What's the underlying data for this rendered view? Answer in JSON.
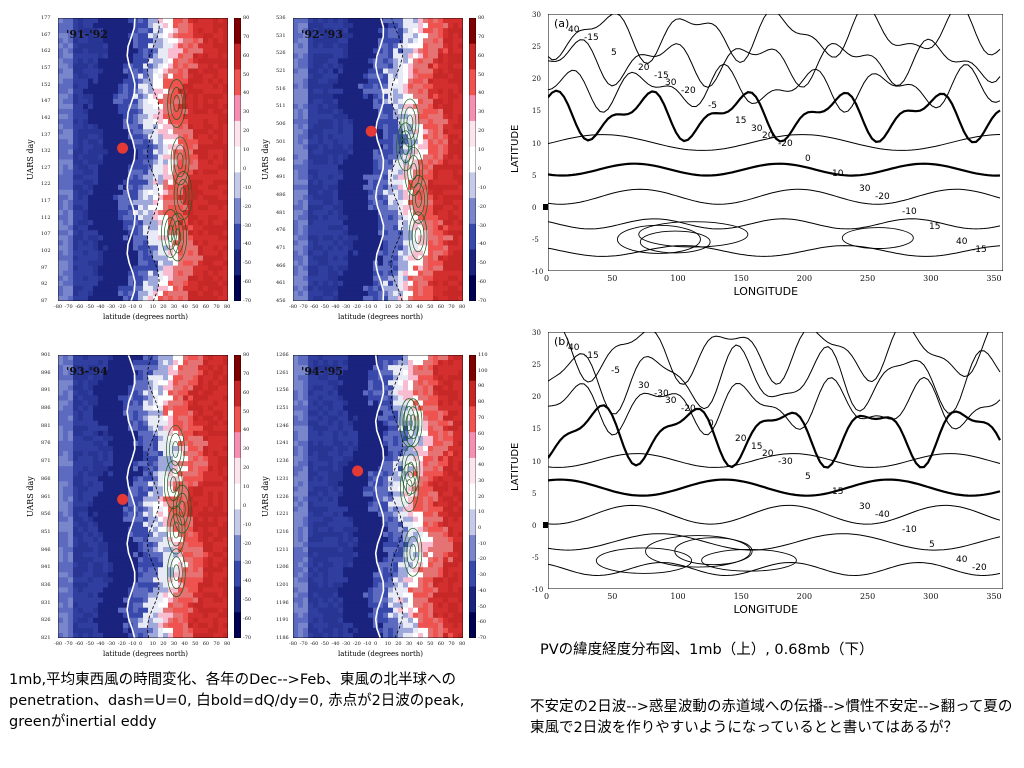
{
  "left_panels": [
    {
      "year_label": "'91-'92",
      "yticks": [
        "177",
        "167",
        "162",
        "157",
        "152",
        "147",
        "142",
        "137",
        "132",
        "127",
        "122",
        "117",
        "112",
        "107",
        "102",
        "97",
        "92",
        "87"
      ]
    },
    {
      "year_label": "'92-'93",
      "yticks": [
        "536",
        "531",
        "526",
        "521",
        "516",
        "511",
        "506",
        "501",
        "496",
        "491",
        "486",
        "481",
        "476",
        "471",
        "466",
        "461",
        "456"
      ]
    },
    {
      "year_label": "'93-'94",
      "yticks": [
        "901",
        "896",
        "891",
        "886",
        "881",
        "876",
        "871",
        "866",
        "861",
        "856",
        "851",
        "846",
        "841",
        "836",
        "831",
        "826",
        "821"
      ]
    },
    {
      "year_label": "'94-'95",
      "yticks": [
        "1266",
        "1261",
        "1256",
        "1251",
        "1246",
        "1241",
        "1236",
        "1231",
        "1226",
        "1221",
        "1216",
        "1211",
        "1206",
        "1201",
        "1196",
        "1191",
        "1186"
      ]
    }
  ],
  "heat_axis": {
    "ylabel": "UARS day",
    "xlabel": "latitude (degrees north)",
    "xticks": [
      "-80",
      "-70",
      "-60",
      "-50",
      "-40",
      "-30",
      "-20",
      "-10",
      "0",
      "10",
      "20",
      "30",
      "40",
      "50",
      "60",
      "70",
      "80"
    ],
    "colorbar_ticks": [
      "80",
      "70",
      "60",
      "50",
      "40",
      "30",
      "20",
      "10",
      "0",
      "-10",
      "-20",
      "-30",
      "-40",
      "-50",
      "-60",
      "-70"
    ],
    "colorbar_ticks_b": [
      "110",
      "100",
      "90",
      "80",
      "70",
      "60",
      "50",
      "40",
      "30",
      "20",
      "10",
      "0",
      "-10",
      "-20",
      "-30",
      "-40",
      "-50",
      "-60",
      "-70"
    ]
  },
  "contour_panels": [
    {
      "tag": "(a)",
      "xlabel": "LONGITUDE",
      "ylabel": "LATITUDE",
      "xticks": [
        "0",
        "50",
        "100",
        "150",
        "200",
        "250",
        "300",
        "350"
      ],
      "yticks": [
        "30",
        "25",
        "20",
        "15",
        "10",
        "5",
        "0",
        "-5",
        "-10"
      ],
      "labels": [
        "40",
        "30",
        "20",
        "30",
        "40",
        "20",
        "15",
        "10",
        "15",
        "5",
        "-5",
        "0",
        "-10",
        "-15",
        "-20",
        "-20",
        "-20",
        "-15",
        "-15",
        "30"
      ]
    },
    {
      "tag": "(b)",
      "xlabel": "LONGITUDE",
      "ylabel": "LATITUDE",
      "xticks": [
        "0",
        "50",
        "100",
        "150",
        "200",
        "250",
        "300",
        "350"
      ],
      "yticks": [
        "30",
        "25",
        "20",
        "15",
        "10",
        "5",
        "0",
        "-5",
        "-10"
      ],
      "labels": [
        "40",
        "30",
        "20",
        "30",
        "40",
        "30",
        "20",
        "15",
        "5",
        "-5",
        "0",
        "5",
        "-10",
        "-15",
        "-20",
        "-30",
        "-40",
        "-20",
        "-30",
        "15"
      ]
    }
  ],
  "captions": {
    "left": "1mb,平均東西風の時間変化、各年のDec-->Feb、東風の北半球へのpenetration、dash=U=0, 白bold=dQ/dy=0, 赤点が2日波のpeak, greenがinertial eddy",
    "right_title": "PVの緯度経度分布図、1mb（上）, 0.68mb（下）",
    "right": "不安定の2日波-->惑星波動の赤道域への伝播-->慣性不安定-->翻って夏の東風で2日波を作りやすいようになっているとと書いてはあるが？"
  },
  "colors": {
    "blue_dark": "#1a237e",
    "blue": "#3f51b5",
    "white": "#ffffff",
    "pink": "#f48fb1",
    "red": "#c62828",
    "dot": "#e53935"
  }
}
